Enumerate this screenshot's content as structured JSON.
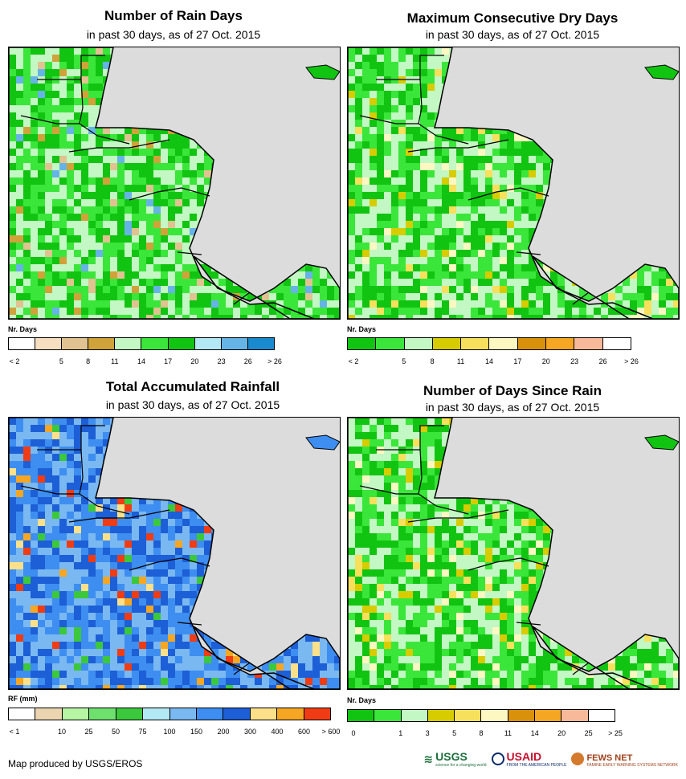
{
  "panels": [
    {
      "title": "Number of Rain Days",
      "subtitle": "in past 30 days, as of 27 Oct. 2015",
      "legend_title": "Nr. Days",
      "legend_colors": [
        "#ffffff",
        "#f6dfc0",
        "#e1c291",
        "#cfa33a",
        "#c3f7c3",
        "#3ae63a",
        "#12c412",
        "#b3e8f5",
        "#66b4e6",
        "#1a8acf"
      ],
      "legend_labels": [
        "< 2",
        "5",
        "8",
        "11",
        "14",
        "17",
        "20",
        "23",
        "26",
        "> 26"
      ],
      "dominant_colors": [
        "#12c412",
        "#3ae63a",
        "#c3f7c3",
        "#66b4e6",
        "#cfa33a",
        "#e1c291"
      ]
    },
    {
      "title": "Maximum Consecutive Dry Days",
      "subtitle": "in past 30 days, as of 27 Oct. 2015",
      "legend_title": "Nr. Days",
      "legend_colors": [
        "#12c412",
        "#3ae63a",
        "#c3f7c3",
        "#d6cc00",
        "#f7e05c",
        "#fdf8c2",
        "#d9900a",
        "#f5a623",
        "#f7b99a",
        "#ffffff"
      ],
      "legend_labels": [
        "< 2",
        "5",
        "8",
        "11",
        "14",
        "17",
        "20",
        "23",
        "26",
        "> 26"
      ],
      "dominant_colors": [
        "#12c412",
        "#3ae63a",
        "#c3f7c3",
        "#f7e05c",
        "#fdf8c2",
        "#d6cc00"
      ]
    },
    {
      "title": "Total Accumulated Rainfall",
      "subtitle": "in past 30 days, as of 27 Oct. 2015",
      "legend_title": "RF (mm)",
      "legend_colors": [
        "#ffffff",
        "#ebd5b0",
        "#b5f5a3",
        "#6ee06e",
        "#3cc83c",
        "#b3e8f5",
        "#7ab8f2",
        "#3d8ef0",
        "#1d5fd6",
        "#fde08a",
        "#f5a623",
        "#f03c14"
      ],
      "legend_labels": [
        "< 1",
        "10",
        "25",
        "50",
        "75",
        "100",
        "150",
        "200",
        "300",
        "400",
        "600",
        "> 600"
      ],
      "dominant_colors": [
        "#3d8ef0",
        "#1d5fd6",
        "#7ab8f2",
        "#f5a623",
        "#fde08a",
        "#f03c14",
        "#3cc83c"
      ]
    },
    {
      "title": "Number of Days Since Rain",
      "subtitle": "in past 30 days, as of 27 Oct. 2015",
      "legend_title": "Nr. Days",
      "legend_colors": [
        "#12c412",
        "#3ae63a",
        "#c3f7c3",
        "#d6cc00",
        "#f7e05c",
        "#fdf8c2",
        "#d9900a",
        "#f5a623",
        "#f7b99a",
        "#ffffff"
      ],
      "legend_labels": [
        "0",
        "1",
        "3",
        "5",
        "8",
        "11",
        "14",
        "20",
        "25",
        "> 25"
      ],
      "dominant_colors": [
        "#12c412",
        "#3ae63a",
        "#c3f7c3",
        "#f7e05c",
        "#fdf8c2",
        "#d6cc00"
      ]
    }
  ],
  "credit": "Map produced by USGS/EROS",
  "logos": {
    "usgs": "USGS",
    "usgs_tagline": "science for a changing world",
    "usaid": "USAID",
    "usaid_tagline": "FROM THE AMERICAN PEOPLE",
    "fews": "FEWS NET",
    "fews_tagline": "FAMINE EARLY WARNING SYSTEMS NETWORK"
  },
  "colors": {
    "ocean": "#dcdcdc",
    "border": "#000000"
  }
}
